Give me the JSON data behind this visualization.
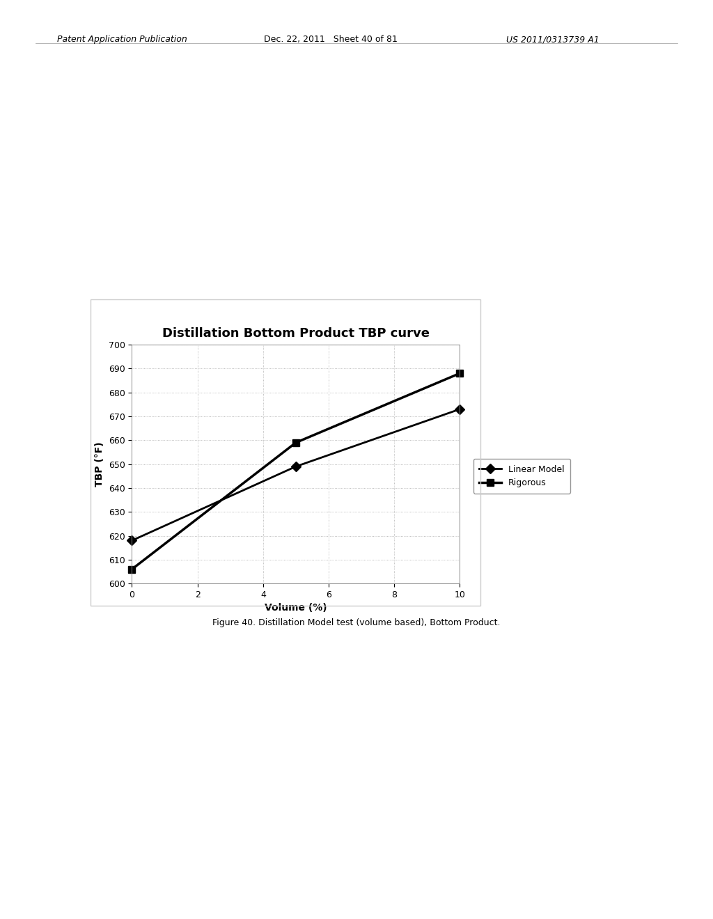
{
  "title": "Distillation Bottom Product TBP curve",
  "xlabel": "Volume (%)",
  "ylabel": "TBP (°F)",
  "linear_model": {
    "x": [
      0,
      5,
      10
    ],
    "y": [
      618,
      649,
      673
    ],
    "label": "Linear Model",
    "color": "#000000",
    "marker": "D",
    "markersize": 7,
    "linewidth": 2.0
  },
  "rigorous": {
    "x": [
      0,
      5,
      10
    ],
    "y": [
      606,
      659,
      688
    ],
    "label": "Rigorous",
    "color": "#000000",
    "marker": "s",
    "markersize": 7,
    "linewidth": 2.5
  },
  "xlim": [
    0,
    10
  ],
  "ylim": [
    600,
    700
  ],
  "yticks": [
    600,
    610,
    620,
    630,
    640,
    650,
    660,
    670,
    680,
    690,
    700
  ],
  "xticks": [
    0,
    2,
    4,
    6,
    8,
    10
  ],
  "grid_color": "#aaaaaa",
  "grid_linestyle": ":",
  "background_color": "#ffffff",
  "title_fontsize": 13,
  "label_fontsize": 10,
  "tick_fontsize": 9,
  "legend_fontsize": 9,
  "figure_caption": "Figure 40. Distillation Model test (volume based), Bottom Product.",
  "header_left": "Patent Application Publication",
  "header_mid": "Dec. 22, 2011   Sheet 40 of 81",
  "header_right": "US 2011/0313739 A1",
  "outer_box_color": "#cccccc"
}
